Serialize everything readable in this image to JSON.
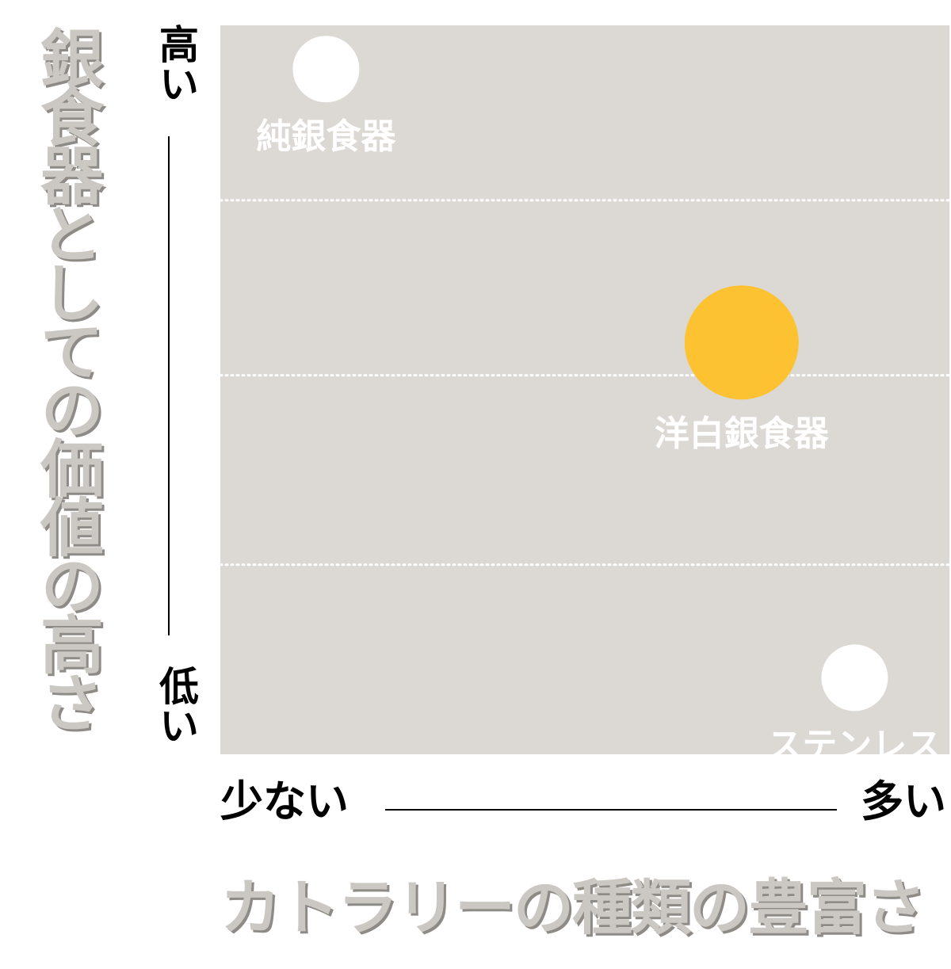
{
  "chart_data": {
    "type": "scatter",
    "ylabel": "銀食器としての価値の高さ",
    "xlabel": "カトラリーの種類の豊富さ",
    "y_axis_end_labels": {
      "high": "高い",
      "low": "低い"
    },
    "x_axis_end_labels": {
      "low": "少ない",
      "high": "多い"
    },
    "xlim": [
      0,
      1
    ],
    "ylim": [
      0,
      1
    ],
    "gridlines_y": [
      0.26,
      0.52,
      0.76
    ],
    "grid": "horizontal-dotted",
    "points": [
      {
        "label": "純銀食器",
        "x": 0.145,
        "y": 0.94,
        "color": "#ffffff"
      },
      {
        "label": "洋白銀食器",
        "x": 0.715,
        "y": 0.565,
        "color": "#fcc232"
      },
      {
        "label": "ステンレス",
        "x": 0.87,
        "y": 0.105,
        "color": "#ffffff"
      }
    ]
  },
  "colors": {
    "plot_background": "#dcd9d4",
    "axis_title": "#cbc8c3",
    "axis_title_shadow": "#8e8b87",
    "point_label": "#ffffff",
    "highlight": "#fcc232"
  }
}
